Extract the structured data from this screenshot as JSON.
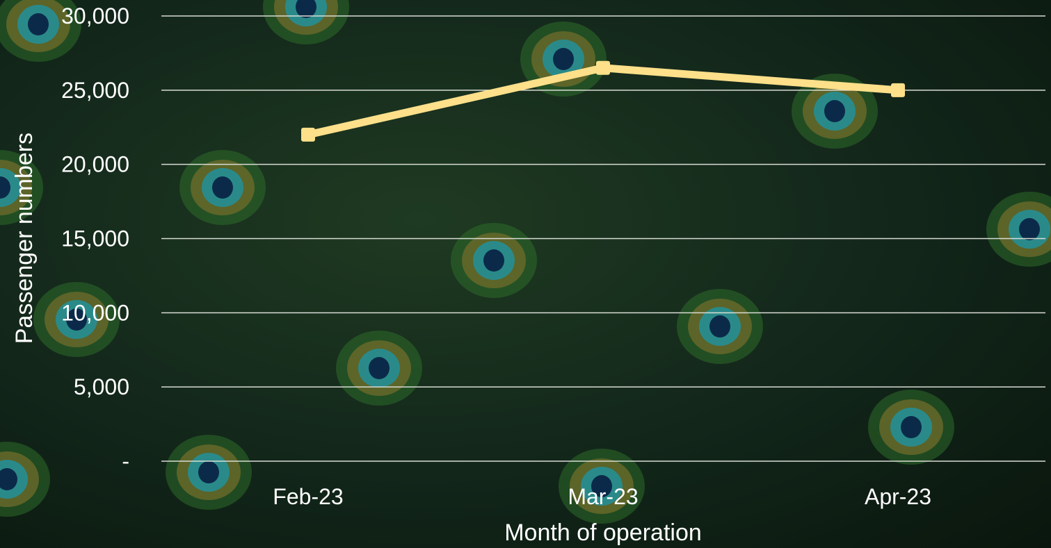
{
  "colors": {
    "line": "#ffe08a",
    "grid": "#d9dcd4",
    "text": "#ffffff"
  },
  "background": {
    "description_icon": "peacock-feather-icon"
  },
  "chart_data": {
    "type": "line",
    "categories": [
      "Feb-23",
      "Mar-23",
      "Apr-23"
    ],
    "series": [
      {
        "values": [
          22000,
          26500,
          25000
        ]
      }
    ],
    "xlabel": "Month of operation",
    "ylabel": "Passenger numbers",
    "ylim": [
      0,
      30000
    ],
    "y_ticks": [
      0,
      5000,
      10000,
      15000,
      20000,
      25000,
      30000
    ],
    "y_tick_labels": [
      "-",
      "5,000",
      "10,000",
      "15,000",
      "20,000",
      "25,000",
      "30,000"
    ],
    "grid": true,
    "legend": "none",
    "marker": "square"
  }
}
